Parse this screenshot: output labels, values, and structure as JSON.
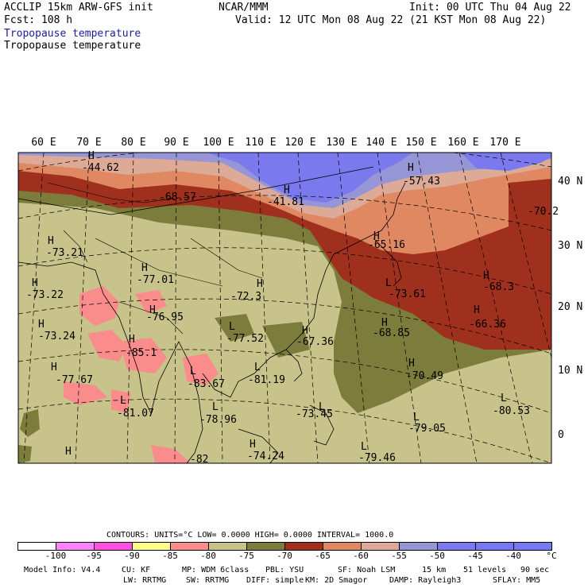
{
  "header": {
    "model": "ACCLIP 15km ARW-GFS init",
    "org": "NCAR/MMM",
    "init": "Init: 00 UTC Thu 04 Aug 22",
    "fcst": "Fcst:  108 h",
    "valid": "Valid: 12 UTC Mon 08 Aug 22 (21 KST Mon 08 Aug 22)",
    "field_title_1": "Tropopause temperature",
    "field_title_2": "Tropopause temperature"
  },
  "map": {
    "lon_labels": [
      "60 E",
      "70 E",
      "80 E",
      "90 E",
      "100 E",
      "110 E",
      "120 E",
      "130 E",
      "140 E",
      "150 E",
      "160 E",
      "170 E"
    ],
    "lat_labels": [
      "40 N",
      "30 N",
      "20 N",
      "10 N",
      "0"
    ],
    "colors": {
      "r_neg90": "#fa8c8c",
      "r_neg85": "#fa8c8c",
      "r_neg80": "#c8c38a",
      "r_neg75": "#7c7c3c",
      "r_neg70": "#a0301e",
      "r_neg65": "#e08862",
      "r_neg60": "#dcaa96",
      "r_neg55": "#9696d6",
      "r_neg50": "#7a7aee",
      "r_neg45": "#7878f4",
      "land": "#c8c38a",
      "ocean_offmap": "#ffffff"
    },
    "labels": [
      {
        "kind": "H",
        "text": "H"
      },
      {
        "kind": "v",
        "text": "-44.62"
      },
      {
        "kind": "v",
        "text": "-68.57"
      },
      {
        "kind": "H",
        "text": "H"
      },
      {
        "kind": "v",
        "text": "-41.81"
      },
      {
        "kind": "H",
        "text": "H"
      },
      {
        "kind": "v",
        "text": "-57.43"
      },
      {
        "kind": "v",
        "text": "-70.2"
      },
      {
        "kind": "H",
        "text": "H"
      },
      {
        "kind": "v",
        "text": "-73.21"
      },
      {
        "kind": "H",
        "text": "H"
      },
      {
        "kind": "v",
        "text": "-65.16"
      },
      {
        "kind": "H",
        "text": "H"
      },
      {
        "kind": "v",
        "text": "-77.01"
      },
      {
        "kind": "H",
        "text": "H"
      },
      {
        "kind": "v",
        "text": "-73.22"
      },
      {
        "kind": "H",
        "text": "H"
      },
      {
        "kind": "v",
        "text": "-72.3"
      },
      {
        "kind": "L",
        "text": "L"
      },
      {
        "kind": "v",
        "text": "-73.61"
      },
      {
        "kind": "H",
        "text": "H"
      },
      {
        "kind": "v",
        "text": "-68.3"
      },
      {
        "kind": "H",
        "text": "H"
      },
      {
        "kind": "v",
        "text": "-76.95"
      },
      {
        "kind": "H",
        "text": "H"
      },
      {
        "kind": "v",
        "text": "-66.36"
      },
      {
        "kind": "H",
        "text": "H"
      },
      {
        "kind": "v",
        "text": "-73.24"
      },
      {
        "kind": "L",
        "text": "L"
      },
      {
        "kind": "v",
        "text": "-77.52"
      },
      {
        "kind": "H",
        "text": "H"
      },
      {
        "kind": "v",
        "text": "-67.36"
      },
      {
        "kind": "H",
        "text": "H"
      },
      {
        "kind": "v",
        "text": "-68.85"
      },
      {
        "kind": "H",
        "text": "H"
      },
      {
        "kind": "v",
        "text": "-85.1"
      },
      {
        "kind": "H",
        "text": "H"
      },
      {
        "kind": "v",
        "text": "-77.67"
      },
      {
        "kind": "L",
        "text": "L"
      },
      {
        "kind": "v",
        "text": "-81.19"
      },
      {
        "kind": "H",
        "text": "H"
      },
      {
        "kind": "v",
        "text": "-70.49"
      },
      {
        "kind": "L",
        "text": "L"
      },
      {
        "kind": "v",
        "text": "-83.67"
      },
      {
        "kind": "L",
        "text": "L"
      },
      {
        "kind": "v",
        "text": "-81.07"
      },
      {
        "kind": "L",
        "text": "L"
      },
      {
        "kind": "v",
        "text": "-78.96"
      },
      {
        "kind": "L",
        "text": "L"
      },
      {
        "kind": "v",
        "text": "-73.45"
      },
      {
        "kind": "L",
        "text": "L"
      },
      {
        "kind": "v",
        "text": "-80.53"
      },
      {
        "kind": "L",
        "text": "L"
      },
      {
        "kind": "v",
        "text": "-79.05"
      },
      {
        "kind": "H",
        "text": "H"
      },
      {
        "kind": "v",
        "text": "-74.24"
      },
      {
        "kind": "L",
        "text": "L"
      },
      {
        "kind": "v",
        "text": "-79.46"
      },
      {
        "kind": "H",
        "text": "H"
      },
      {
        "kind": "v",
        "text": "-82"
      }
    ]
  },
  "contours": {
    "line": "CONTOURS:  UNITS=°C  LOW=  0.0000       HIGH=  0.0000       INTERVAL=   1000.0"
  },
  "colorbar": {
    "colors": [
      "#ffffff",
      "#ff82ff",
      "#ff50e6",
      "#ffff8c",
      "#fa8c8c",
      "#c8c38a",
      "#7c7c3c",
      "#a0301e",
      "#e08862",
      "#dcaa96",
      "#9696d6",
      "#7a7aee",
      "#7878f4",
      "#7878f4"
    ],
    "labels": [
      "-100",
      "-95",
      "-90",
      "-85",
      "-80",
      "-75",
      "-70",
      "-65",
      "-60",
      "-55",
      "-50",
      "-45",
      "-40",
      "°C"
    ]
  },
  "footer": {
    "row1": [
      "Model Info: V4.4",
      "CU: KF",
      "MP: WDM 6class",
      "PBL: YSU",
      "SF: Noah LSM",
      "15 km",
      "51 levels",
      "90 sec"
    ],
    "row2": [
      "LW: RRTMG",
      "SW: RRTMG",
      "DIFF: simple",
      "KM: 2D Smagor",
      "DAMP: Rayleigh3",
      "SFLAY: MM5"
    ]
  }
}
